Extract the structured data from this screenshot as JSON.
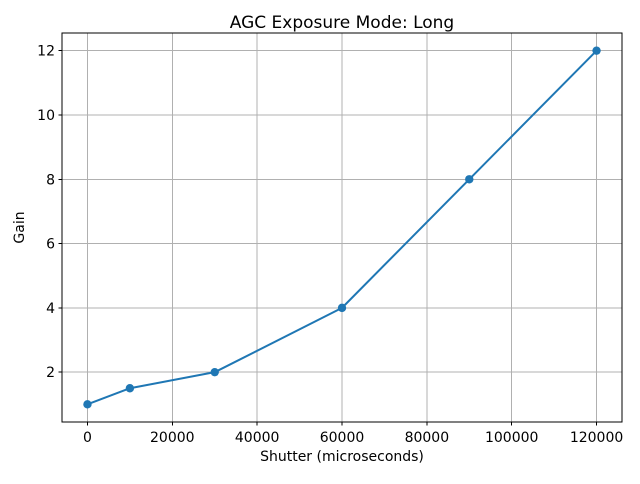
{
  "chart_data": {
    "type": "line",
    "title": "AGC Exposure Mode: Long",
    "xlabel": "Shutter (microseconds)",
    "ylabel": "Gain",
    "x": [
      0,
      10000,
      30000,
      60000,
      90000,
      120000
    ],
    "y": [
      1,
      1.5,
      2,
      4,
      8,
      12
    ],
    "xticks": [
      0,
      20000,
      40000,
      60000,
      80000,
      100000,
      120000
    ],
    "yticks": [
      2,
      4,
      6,
      8,
      10,
      12
    ],
    "xlim": [
      -6000,
      126000
    ],
    "ylim": [
      0.45,
      12.55
    ],
    "grid": true,
    "legend": false,
    "line_color": "#1f77b4",
    "marker_color": "#1f77b4",
    "grid_color": "#b0b0b0",
    "spine_color": "#000000",
    "background_color": "#ffffff"
  }
}
